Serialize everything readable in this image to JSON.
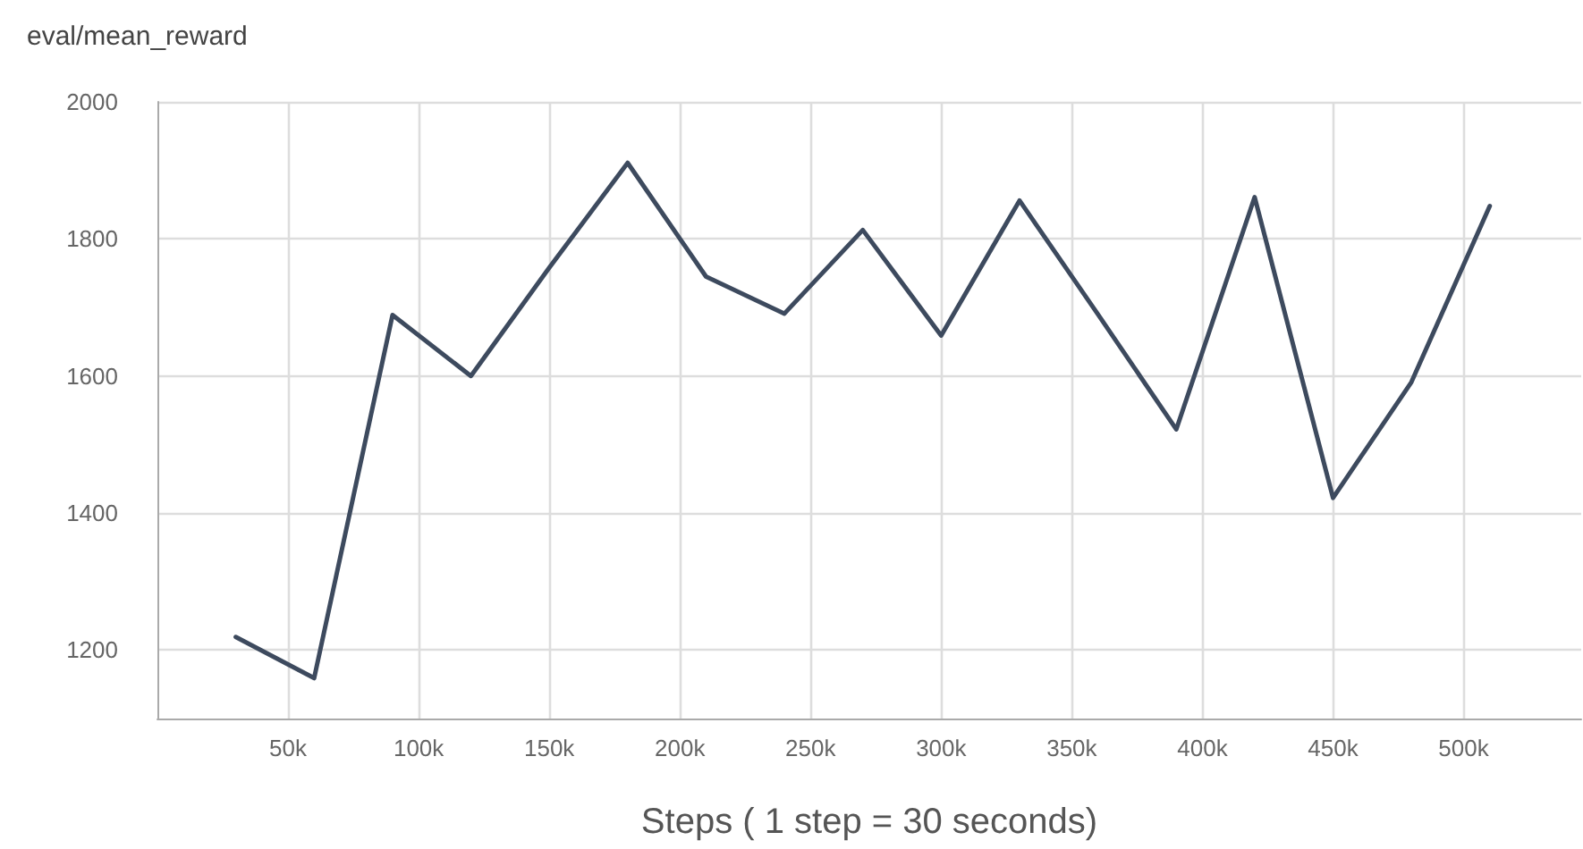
{
  "chart_data": {
    "type": "line",
    "title": "eval/mean_reward",
    "xlabel": "Steps ( 1 step = 30 seconds)",
    "x": [
      30000,
      60000,
      90000,
      120000,
      150000,
      180000,
      210000,
      240000,
      270000,
      300000,
      330000,
      360000,
      390000,
      420000,
      450000,
      480000,
      510000
    ],
    "series": [
      {
        "color": "#3d4a5e",
        "values": [
          1219,
          1159,
          1689,
          1600,
          1758,
          1911,
          1745,
          1691,
          1813,
          1659,
          1856,
          1690,
          1522,
          1861,
          1422,
          1591,
          1848
        ]
      }
    ],
    "xlim": [
      0,
      545000
    ],
    "xticks": [
      {
        "value": 50000,
        "label": "50k"
      },
      {
        "value": 100000,
        "label": "100k"
      },
      {
        "value": 150000,
        "label": "150k"
      },
      {
        "value": 200000,
        "label": "200k"
      },
      {
        "value": 250000,
        "label": "250k"
      },
      {
        "value": 300000,
        "label": "300k"
      },
      {
        "value": 350000,
        "label": "350k"
      },
      {
        "value": 400000,
        "label": "400k"
      },
      {
        "value": 450000,
        "label": "450k"
      },
      {
        "value": 500000,
        "label": "500k"
      }
    ],
    "ylim": [
      1100,
      2000
    ],
    "yticks": [
      1200,
      1400,
      1600,
      1800,
      2000
    ],
    "grid": true,
    "marker": "none",
    "line_style": "solid"
  }
}
